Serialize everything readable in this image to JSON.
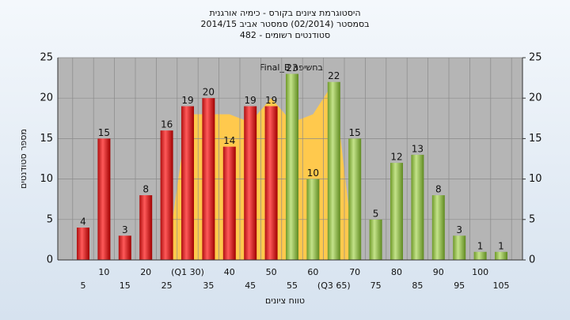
{
  "chart_data": {
    "type": "bar",
    "title": [
      "היסטוגרמת ציונים בקורס - כימיה אורגנית",
      "בסמסטר  (02/2014)  סמסטר אביב 2014/15",
      "סטודנטים רשומים - 482"
    ],
    "x_label": "טווח ציונים",
    "y_label": "מספר סטודנטים",
    "categories": [
      "5",
      "10",
      "15",
      "20",
      "25",
      "(Q1 30)",
      "35",
      "40",
      "45",
      "50",
      "55",
      "60",
      "(Q3 65)",
      "70",
      "75",
      "80",
      "85",
      "90",
      "95",
      "100",
      "105"
    ],
    "values": [
      4,
      15,
      3,
      8,
      16,
      19,
      20,
      14,
      19,
      19,
      23,
      10,
      22,
      15,
      5,
      12,
      13,
      8,
      3,
      1,
      1
    ],
    "colors": [
      "red",
      "red",
      "red",
      "red",
      "red",
      "red",
      "red",
      "red",
      "red",
      "red",
      "green",
      "green",
      "green",
      "green",
      "green",
      "green",
      "green",
      "green",
      "green",
      "green",
      "green"
    ],
    "area": {
      "name": "Final_B בחשיפה",
      "color": "#ffc94d",
      "values": [
        null,
        null,
        null,
        null,
        0,
        18,
        18,
        18,
        17,
        20,
        17,
        18,
        22,
        0,
        null,
        null,
        null,
        null,
        null,
        null,
        null
      ]
    },
    "ylim": [
      0,
      25
    ],
    "yticks": [
      0,
      5,
      10,
      15,
      20,
      25
    ],
    "y2lim": [
      0,
      25
    ],
    "y2ticks": [
      0,
      5,
      10,
      15,
      20,
      25
    ],
    "grid": true
  }
}
